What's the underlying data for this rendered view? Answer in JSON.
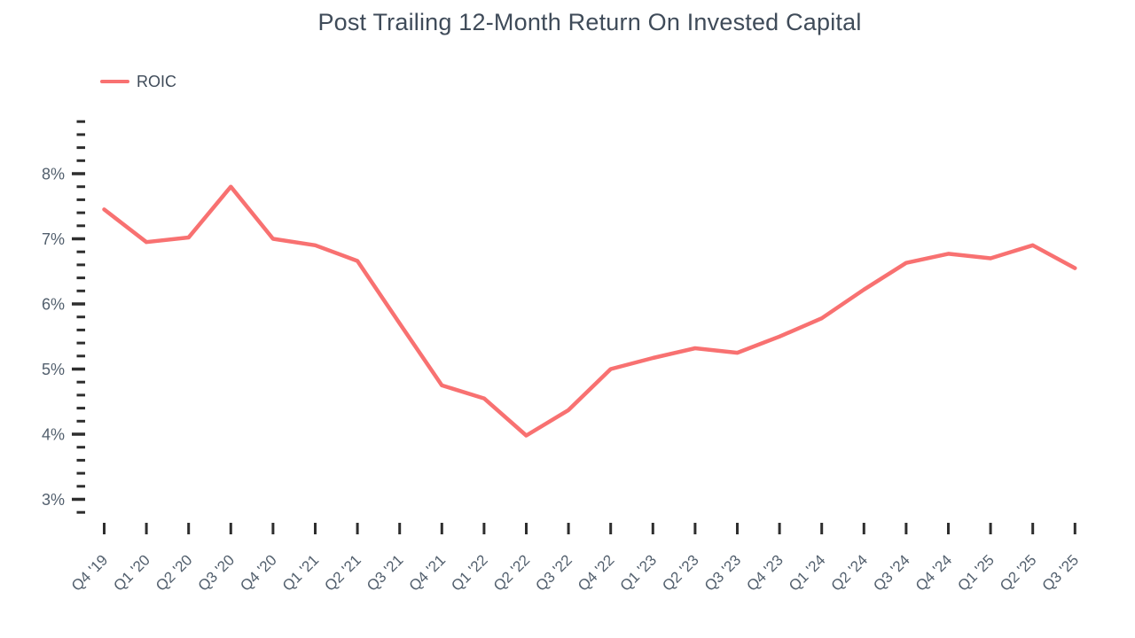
{
  "title": "Post Trailing 12-Month Return On Invested Capital",
  "legend": {
    "label": "ROIC",
    "swatch_color": "#f87171"
  },
  "chart_data": {
    "type": "line",
    "title": "Post Trailing 12-Month Return On Invested Capital",
    "xlabel": "",
    "ylabel": "",
    "grid": false,
    "legend_position": "top-left",
    "line_color": "#f87171",
    "text_color": "#3f4b59",
    "axis_label_color": "#525f6d",
    "tick_mark_color": "#2e2e2e",
    "y_tick_labels": [
      "3%",
      "4%",
      "5%",
      "6%",
      "7%",
      "8%"
    ],
    "y_major_ticks": [
      3,
      4,
      5,
      6,
      7,
      8
    ],
    "y_minor_tick_step": 0.2,
    "y_tick_range": [
      2.8,
      8.8
    ],
    "ylim": [
      2.65,
      8.9
    ],
    "categories": [
      "Q4 '19",
      "Q1 '20",
      "Q2 '20",
      "Q3 '20",
      "Q4 '20",
      "Q1 '21",
      "Q2 '21",
      "Q3 '21",
      "Q4 '21",
      "Q1 '22",
      "Q2 '22",
      "Q3 '22",
      "Q4 '22",
      "Q1 '23",
      "Q2 '23",
      "Q3 '23",
      "Q4 '23",
      "Q1 '24",
      "Q2 '24",
      "Q3 '24",
      "Q4 '24",
      "Q1 '25",
      "Q2 '25",
      "Q3 '25"
    ],
    "series": [
      {
        "name": "ROIC",
        "unit": "%",
        "values": [
          7.45,
          6.95,
          7.02,
          7.8,
          7.0,
          6.9,
          6.66,
          5.7,
          4.75,
          4.55,
          3.98,
          4.37,
          5.0,
          5.17,
          5.32,
          5.25,
          5.5,
          5.78,
          6.22,
          6.63,
          6.77,
          6.7,
          6.9,
          6.55
        ]
      }
    ]
  }
}
